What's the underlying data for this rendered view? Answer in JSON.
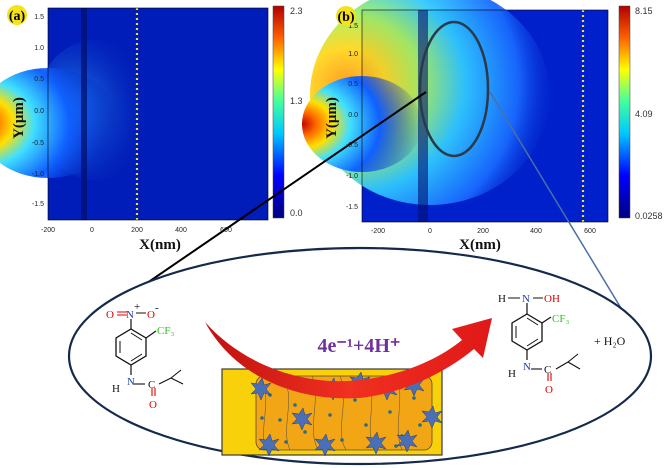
{
  "panel_a": {
    "label": "(a)",
    "xlabel": "X(nm)",
    "ylabel": "Y(μm)",
    "x_ticks": [
      "-200",
      "0",
      "200",
      "400",
      "600"
    ],
    "y_ticks": [
      "1.5",
      "1.0",
      "0.5",
      "0.0",
      "-0.5",
      "-1.0",
      "-1.5"
    ],
    "colorbar_ticks": [
      "2.3",
      "1.3",
      "0.0"
    ]
  },
  "panel_b": {
    "label": "(b)",
    "xlabel": "X(nm)",
    "ylabel": "Y(μm)",
    "x_ticks": [
      "-200",
      "0",
      "200",
      "400",
      "600"
    ],
    "y_ticks": [
      "1.5",
      "1.0",
      "0.5",
      "0.0",
      "-0.5",
      "-1.0",
      "-1.5"
    ],
    "colorbar_ticks": [
      "8.15",
      "4.09",
      "0.0258"
    ]
  },
  "reaction": {
    "equation": "4e⁻¹+4H⁺",
    "byproduct": "+ H₂O",
    "reactant_atoms": {
      "o_left": "O",
      "n": "N",
      "plus": "+",
      "o_right": "O",
      "minus": "-",
      "cf3": "CF₃",
      "h": "H",
      "n2": "N",
      "c": "C",
      "o_bottom": "O"
    },
    "product_atoms": {
      "h_top": "H",
      "n": "N",
      "oh": "OH",
      "cf3": "CF₃",
      "h": "H",
      "n2": "N",
      "c": "C",
      "o_bottom": "O"
    }
  },
  "colors": {
    "field_low": "#0011a8",
    "field_high": "#c80000",
    "arrow": "#e8231b",
    "catalyst_bg": "#f9d10a",
    "catalyst_border": "#3a3a3a",
    "nanoparticle": "#4a6fb5",
    "oxygen": "#e00000",
    "nitrogen": "#1f3fbf",
    "fluorine": "#30c020",
    "ellipse": "#152a4a"
  }
}
